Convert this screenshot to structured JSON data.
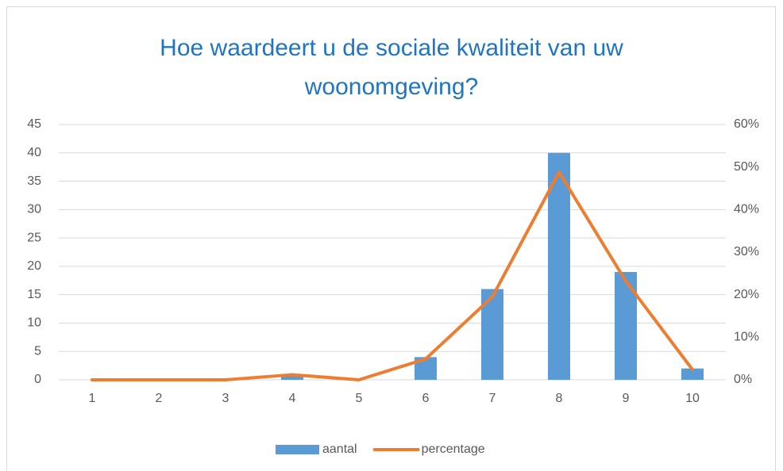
{
  "chart_data": {
    "type": "bar+line",
    "title": [
      "Hoe waardeert u de sociale kwaliteit van uw",
      "woonomgeving?"
    ],
    "categories": [
      "1",
      "2",
      "3",
      "4",
      "5",
      "6",
      "7",
      "8",
      "9",
      "10"
    ],
    "series": [
      {
        "name": "aantal",
        "type": "bar",
        "color": "#5b9bd5",
        "values": [
          0,
          0,
          0,
          1,
          0,
          4,
          16,
          40,
          19,
          2
        ]
      },
      {
        "name": "percentage",
        "type": "line",
        "axis": "y2",
        "color": "#ed7d31",
        "values": [
          0,
          0,
          0,
          1.2,
          0,
          4.9,
          19.5,
          48.8,
          23.2,
          2.4
        ]
      }
    ],
    "ylim": [
      0,
      45
    ],
    "yticks": [
      0,
      5,
      10,
      15,
      20,
      25,
      30,
      35,
      40,
      45
    ],
    "y2lim": [
      0,
      60
    ],
    "y2ticks": [
      {
        "value": 0,
        "label": "0%"
      },
      {
        "value": 10,
        "label": "10%"
      },
      {
        "value": 20,
        "label": "20%"
      },
      {
        "value": 30,
        "label": "30%"
      },
      {
        "value": 40,
        "label": "40%"
      },
      {
        "value": 50,
        "label": "50%"
      },
      {
        "value": 60,
        "label": "60%"
      }
    ],
    "grid": true,
    "legend": "bottom"
  }
}
